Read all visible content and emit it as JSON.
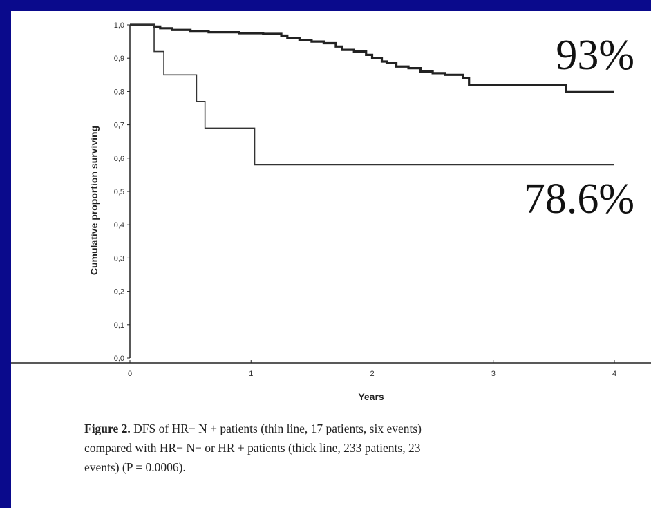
{
  "colors": {
    "slide_background": "#0a0a8c",
    "panel_background": "#ffffff",
    "thin_line": "#333333",
    "thick_line": "#222222"
  },
  "annotations": {
    "thick_survival": "93%",
    "thin_survival": "78.6%"
  },
  "caption": {
    "label": "Figure 2.",
    "line1": "DFS of HR− N + patients (thin line, 17 patients, six events)",
    "line2": "compared with HR− N− or HR + patients (thick line, 233 patients, 23",
    "line3": "events) (P = 0.0006)."
  },
  "chart_data": {
    "type": "line",
    "title": "",
    "xlabel": "Years",
    "ylabel": "Cumulative proportion surviving",
    "xlim": [
      0,
      4
    ],
    "ylim": [
      0.0,
      1.0
    ],
    "x_ticks": [
      0,
      1,
      2,
      3,
      4
    ],
    "x_tick_labels": [
      "0",
      "1",
      "2",
      "3",
      "4"
    ],
    "y_ticks": [
      0.0,
      0.1,
      0.2,
      0.3,
      0.4,
      0.5,
      0.6,
      0.7,
      0.8,
      0.9,
      1.0
    ],
    "y_tick_labels": [
      "0,0",
      "0,1",
      "0,2",
      "0,3",
      "0,4",
      "0,5",
      "0,6",
      "0,7",
      "0,8",
      "0,9",
      "1,0"
    ],
    "grid": false,
    "step": true,
    "series": [
      {
        "style": "thick",
        "points": [
          [
            0,
            1.0
          ],
          [
            0.2,
            0.995
          ],
          [
            0.25,
            0.99
          ],
          [
            0.35,
            0.985
          ],
          [
            0.5,
            0.98
          ],
          [
            0.65,
            0.978
          ],
          [
            0.9,
            0.975
          ],
          [
            1.1,
            0.973
          ],
          [
            1.25,
            0.968
          ],
          [
            1.3,
            0.96
          ],
          [
            1.4,
            0.955
          ],
          [
            1.5,
            0.95
          ],
          [
            1.6,
            0.945
          ],
          [
            1.7,
            0.935
          ],
          [
            1.75,
            0.925
          ],
          [
            1.85,
            0.92
          ],
          [
            1.95,
            0.91
          ],
          [
            2.0,
            0.9
          ],
          [
            2.08,
            0.89
          ],
          [
            2.12,
            0.885
          ],
          [
            2.2,
            0.875
          ],
          [
            2.3,
            0.87
          ],
          [
            2.4,
            0.86
          ],
          [
            2.5,
            0.855
          ],
          [
            2.6,
            0.85
          ],
          [
            2.75,
            0.84
          ],
          [
            2.8,
            0.82
          ],
          [
            3.6,
            0.8
          ],
          [
            4.0,
            0.8
          ]
        ]
      },
      {
        "style": "thin",
        "points": [
          [
            0,
            1.0
          ],
          [
            0.2,
            0.92
          ],
          [
            0.28,
            0.85
          ],
          [
            0.55,
            0.77
          ],
          [
            0.62,
            0.69
          ],
          [
            1.03,
            0.58
          ],
          [
            4.0,
            0.58
          ]
        ]
      }
    ]
  }
}
